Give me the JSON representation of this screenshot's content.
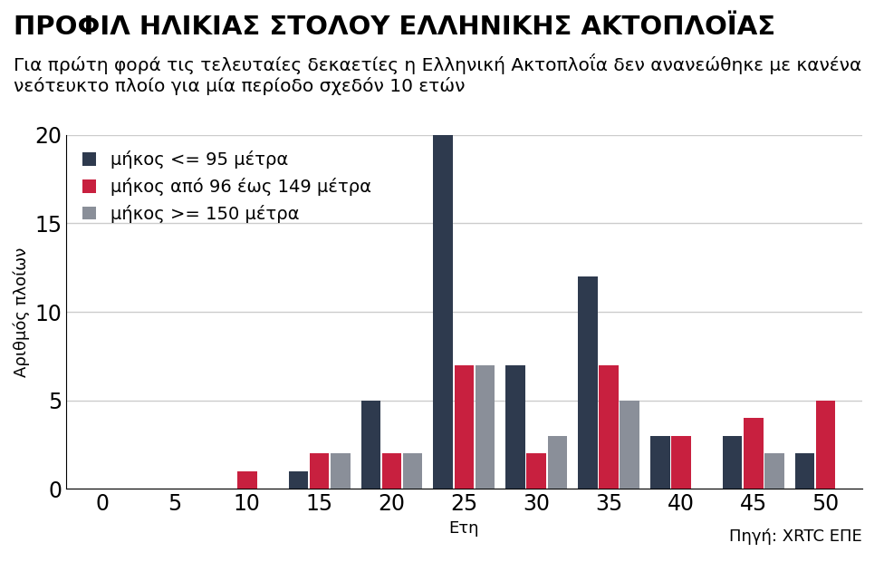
{
  "chart_data": {
    "type": "bar",
    "title": "ΠΡΟΦΙΛ ΗΛΙΚΙΑΣ ΣΤΟΛΟΥ ΕΛΛΗΝΙΚΗΣ ΑΚΤΟΠΛΟΪΑΣ",
    "subtitle": "Για πρώτη φορά τις τελευταίες δεκαετίες η Ελληνική Ακτοπλοΐα δεν ανανεώθηκε με κανένα νεότευκτο πλοίο για μία περίοδο σχεδόν 10 ετών",
    "x_label": "Ετη",
    "y_label": "Αριθμός πλοίων",
    "source": "Πηγή: XRTC ΕΠΕ",
    "x": [
      0,
      5,
      10,
      15,
      20,
      25,
      30,
      35,
      40,
      45,
      50
    ],
    "series": [
      {
        "name": "μήκος <= 95 μέτρα",
        "color": "#2e3a4e",
        "values": [
          0,
          0,
          0,
          1,
          5,
          20,
          7,
          12,
          3,
          3,
          2
        ]
      },
      {
        "name": "μήκος από 96 έως 149 μέτρα",
        "color": "#c8203f",
        "values": [
          0,
          0,
          1,
          2,
          2,
          7,
          2,
          7,
          3,
          4,
          5
        ]
      },
      {
        "name": "μήκος >= 150 μέτρα",
        "color": "#8a8f99",
        "values": [
          0,
          0,
          0,
          2,
          2,
          7,
          3,
          5,
          0,
          2,
          0
        ]
      }
    ],
    "xlim": [
      -2.5,
      52.5
    ],
    "xticks": [
      0,
      5,
      10,
      15,
      20,
      25,
      30,
      35,
      40,
      45,
      50
    ],
    "ylim": [
      0,
      20
    ],
    "yticks": [
      0,
      5,
      10,
      15,
      20
    ],
    "grid": true,
    "legend": "upper left"
  }
}
